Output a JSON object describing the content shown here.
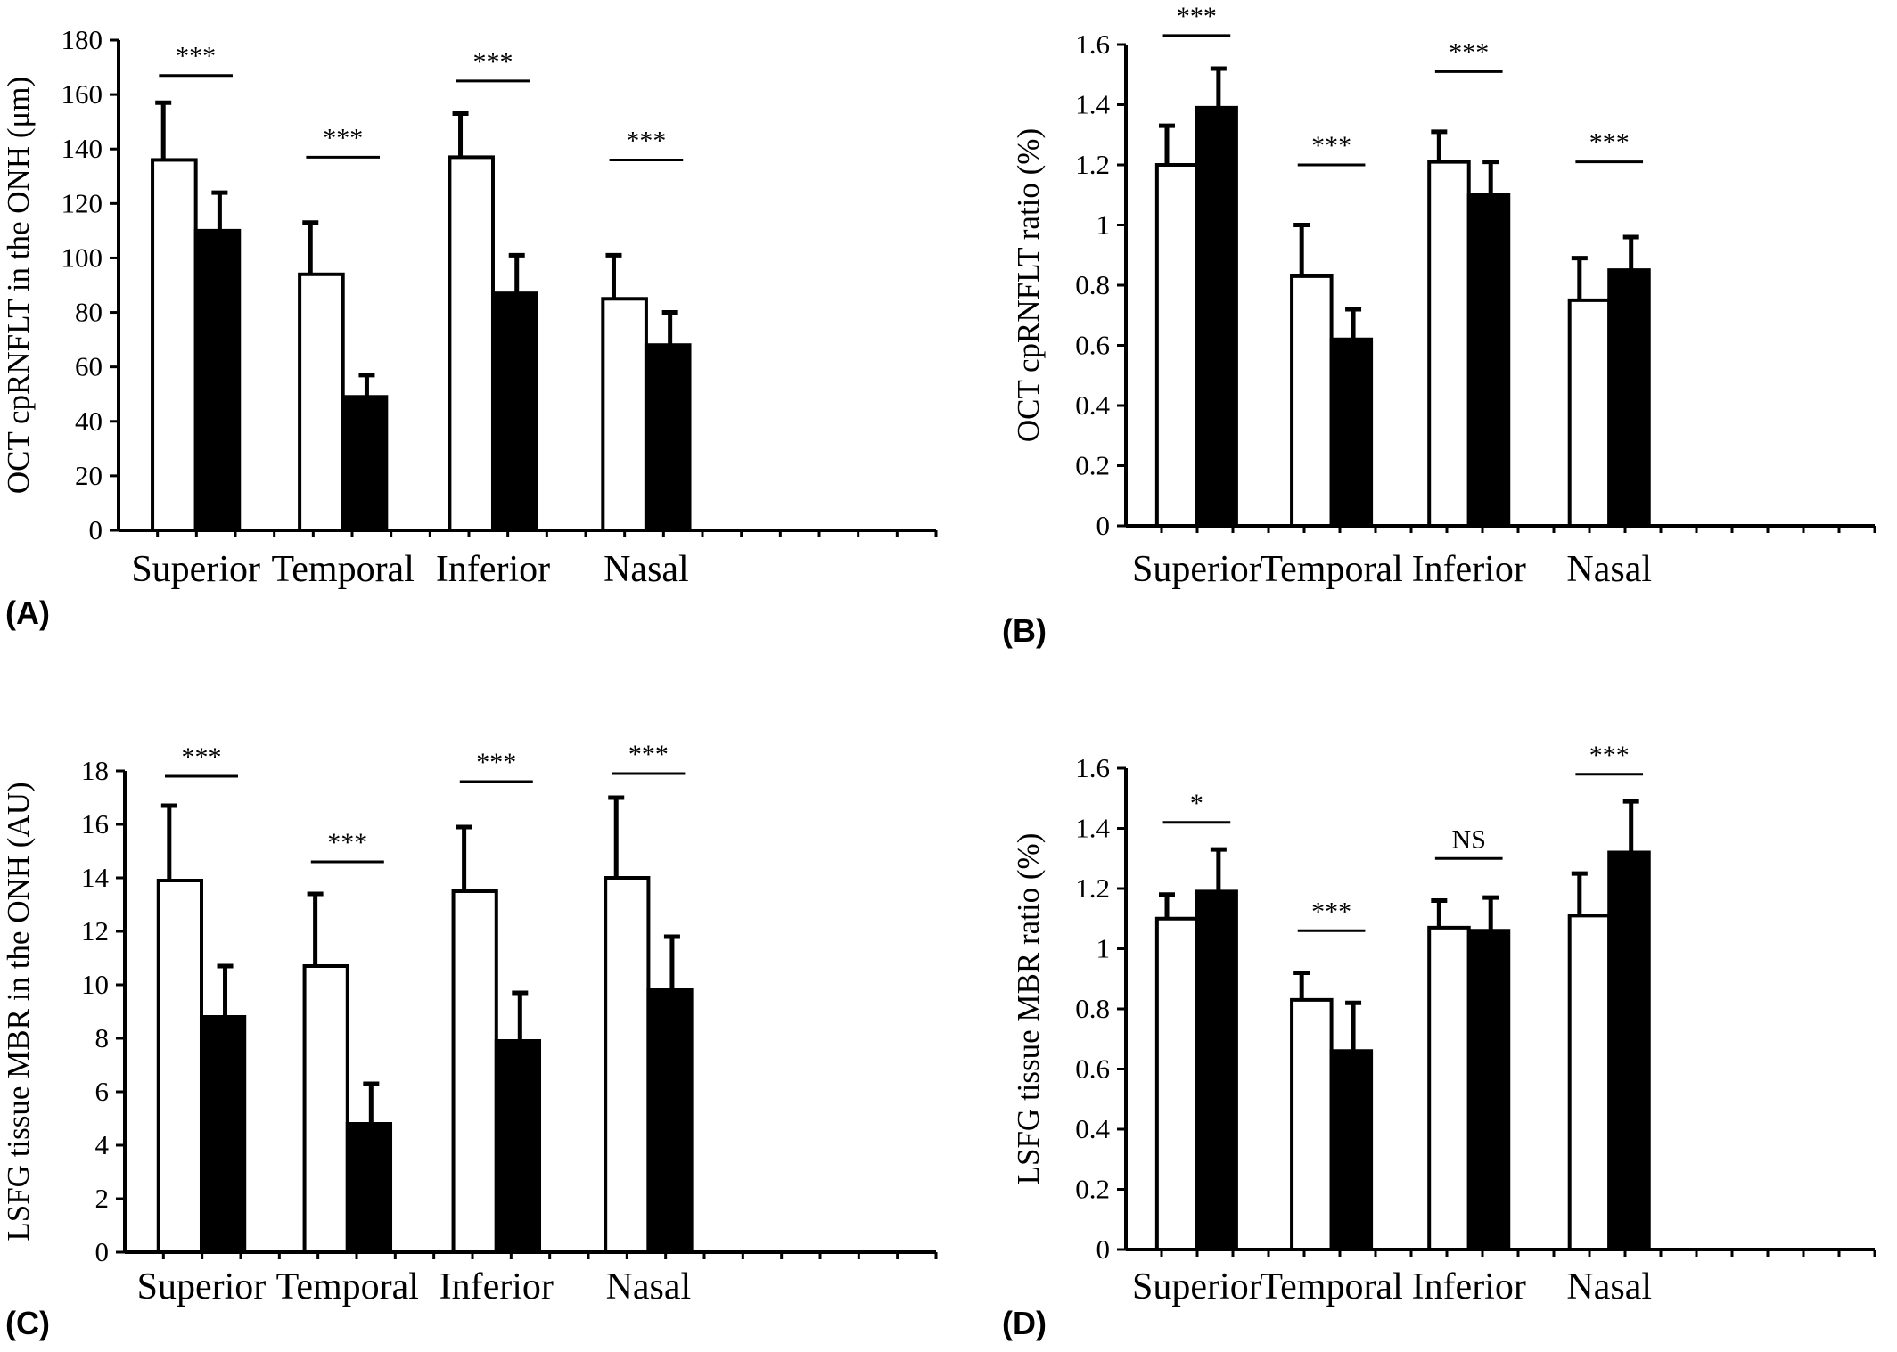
{
  "chart_data": [
    {
      "panel_label": "(A)",
      "type": "bar",
      "ylabel": "OCT cpRNFLT in the ONH (μm)",
      "ylim": [
        0,
        180
      ],
      "yticks": [
        0,
        20,
        40,
        60,
        80,
        100,
        120,
        140,
        160,
        180
      ],
      "ytick_labels": [
        "0",
        "20",
        "40",
        "60",
        "80",
        "100",
        "120",
        "140",
        "160",
        "180"
      ],
      "categories": [
        "Superior",
        "Temporal",
        "Inferior",
        "Nasal"
      ],
      "series": [
        {
          "fill": "#ffffff",
          "values": [
            136,
            94,
            137,
            85
          ],
          "errors": [
            21,
            19,
            16,
            16
          ]
        },
        {
          "fill": "#000000",
          "values": [
            110,
            49,
            87,
            68
          ],
          "errors": [
            14,
            8,
            14,
            12
          ]
        }
      ],
      "significance": [
        "***",
        "***",
        "***",
        "***"
      ],
      "sig_levels": [
        167,
        137,
        165,
        136
      ]
    },
    {
      "panel_label": "(B)",
      "type": "bar",
      "ylabel": "OCT cpRNFLT ratio (%)",
      "ylim": [
        0,
        1.6
      ],
      "yticks": [
        0,
        0.2,
        0.4,
        0.6,
        0.8,
        1,
        1.2,
        1.4,
        1.6
      ],
      "ytick_labels": [
        "0",
        "0.2",
        "0.4",
        "0.6",
        "0.8",
        "1",
        "1.2",
        "1.4",
        "1.6"
      ],
      "categories": [
        "Superior",
        "Temporal",
        "Inferior",
        "Nasal"
      ],
      "series": [
        {
          "fill": "#ffffff",
          "values": [
            1.2,
            0.83,
            1.21,
            0.75
          ],
          "errors": [
            0.13,
            0.17,
            0.1,
            0.14
          ]
        },
        {
          "fill": "#000000",
          "values": [
            1.39,
            0.62,
            1.1,
            0.85
          ],
          "errors": [
            0.13,
            0.1,
            0.11,
            0.11
          ]
        }
      ],
      "significance": [
        "***",
        "***",
        "***",
        "***"
      ],
      "sig_levels": [
        1.63,
        1.2,
        1.51,
        1.21
      ]
    },
    {
      "panel_label": "(C)",
      "type": "bar",
      "ylabel": "LSFG tissue MBR in the ONH (AU)",
      "ylim": [
        0,
        18
      ],
      "yticks": [
        0,
        2,
        4,
        6,
        8,
        10,
        12,
        14,
        16,
        18
      ],
      "ytick_labels": [
        "0",
        "2",
        "4",
        "6",
        "8",
        "10",
        "12",
        "14",
        "16",
        "18"
      ],
      "categories": [
        "Superior",
        "Temporal",
        "Inferior",
        "Nasal"
      ],
      "series": [
        {
          "fill": "#ffffff",
          "values": [
            13.9,
            10.7,
            13.5,
            14.0
          ],
          "errors": [
            2.8,
            2.7,
            2.4,
            3.0
          ]
        },
        {
          "fill": "#000000",
          "values": [
            8.8,
            4.8,
            7.9,
            9.8
          ],
          "errors": [
            1.9,
            1.5,
            1.8,
            2.0
          ]
        }
      ],
      "significance": [
        "***",
        "***",
        "***",
        "***"
      ],
      "sig_levels": [
        17.8,
        14.6,
        17.6,
        17.9
      ]
    },
    {
      "panel_label": "(D)",
      "type": "bar",
      "ylabel": "LSFG tissue MBR ratio (%)",
      "ylim": [
        0,
        1.6
      ],
      "yticks": [
        0,
        0.2,
        0.4,
        0.6,
        0.8,
        1,
        1.2,
        1.4,
        1.6
      ],
      "ytick_labels": [
        "0",
        "0.2",
        "0.4",
        "0.6",
        "0.8",
        "1",
        "1.2",
        "1.4",
        "1.6"
      ],
      "categories": [
        "Superior",
        "Temporal",
        "Inferior",
        "Nasal"
      ],
      "series": [
        {
          "fill": "#ffffff",
          "values": [
            1.1,
            0.83,
            1.07,
            1.11
          ],
          "errors": [
            0.08,
            0.09,
            0.09,
            0.14
          ]
        },
        {
          "fill": "#000000",
          "values": [
            1.19,
            0.66,
            1.06,
            1.32
          ],
          "errors": [
            0.14,
            0.16,
            0.11,
            0.17
          ]
        }
      ],
      "significance": [
        "*",
        "***",
        "NS",
        "***"
      ],
      "sig_levels": [
        1.42,
        1.06,
        1.3,
        1.58
      ]
    }
  ]
}
